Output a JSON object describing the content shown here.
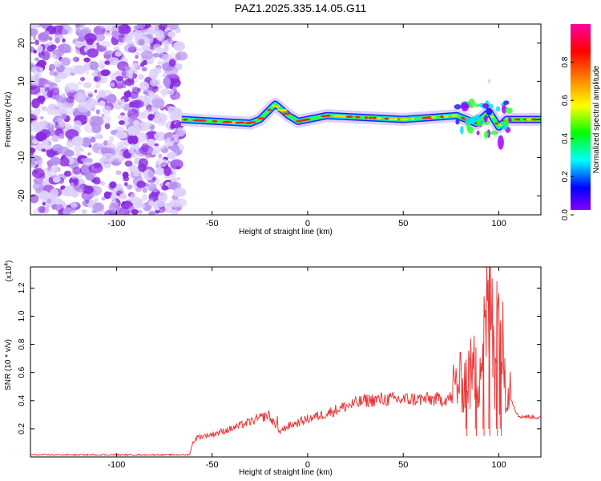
{
  "title": "PAZ1.2025.335.14.05.G11",
  "chart_data": [
    {
      "type": "heatmap",
      "name": "spectrogram",
      "xlabel": "Height of straight line (km)",
      "ylabel": "Frequency (Hz)",
      "xlim": [
        -145,
        122
      ],
      "ylim": [
        -25,
        25
      ],
      "xticks": [
        -100,
        -50,
        0,
        50,
        100
      ],
      "yticks": [
        -20,
        -10,
        0,
        10,
        20
      ],
      "colorbar": {
        "label": "Normalized spectral amplitude",
        "range": [
          0,
          1
        ],
        "ticks": [
          "0.0",
          "0.2",
          "0.4",
          "0.6",
          "0.8"
        ],
        "colors": [
          "#ffffff",
          "#a000ff",
          "#0000ff",
          "#00ffff",
          "#00ff00",
          "#ffff00",
          "#ff8000",
          "#ff0000",
          "#ff00a0"
        ]
      },
      "noise_region_x": [
        -145,
        -66
      ],
      "track_points": [
        {
          "x": -66,
          "f": 0
        },
        {
          "x": -30,
          "f": -1
        },
        {
          "x": -25,
          "f": 0
        },
        {
          "x": -17,
          "f": 4
        },
        {
          "x": -10,
          "f": 1
        },
        {
          "x": -5,
          "f": -0.5
        },
        {
          "x": 10,
          "f": 1
        },
        {
          "x": 50,
          "f": 0
        },
        {
          "x": 78,
          "f": 1
        },
        {
          "x": 88,
          "f": -1
        },
        {
          "x": 95,
          "f": 2
        },
        {
          "x": 100,
          "f": -2
        },
        {
          "x": 104,
          "f": 0
        },
        {
          "x": 122,
          "f": 0
        }
      ]
    },
    {
      "type": "line",
      "name": "snr",
      "xlabel": "Height of straight line (km)",
      "ylabel": "SNR (10 * v/v)",
      "scale_label": "(x10",
      "scale_exp": "4",
      "xlim": [
        -145,
        122
      ],
      "ylim": [
        0,
        1.35
      ],
      "xticks": [
        -100,
        -50,
        0,
        50,
        100
      ],
      "yticks": [
        "0.2",
        "0.4",
        "0.6",
        "0.8",
        "1.0",
        "1.2"
      ],
      "color": "#e8393a",
      "points": [
        {
          "x": -145,
          "y": 0.01
        },
        {
          "x": -62,
          "y": 0.01
        },
        {
          "x": -60,
          "y": 0.1
        },
        {
          "x": -58,
          "y": 0.14
        },
        {
          "x": -50,
          "y": 0.16
        },
        {
          "x": -40,
          "y": 0.2
        },
        {
          "x": -30,
          "y": 0.25
        },
        {
          "x": -20,
          "y": 0.3
        },
        {
          "x": -15,
          "y": 0.18
        },
        {
          "x": -10,
          "y": 0.22
        },
        {
          "x": 0,
          "y": 0.27
        },
        {
          "x": 10,
          "y": 0.31
        },
        {
          "x": 20,
          "y": 0.36
        },
        {
          "x": 30,
          "y": 0.4
        },
        {
          "x": 40,
          "y": 0.41
        },
        {
          "x": 50,
          "y": 0.41
        },
        {
          "x": 60,
          "y": 0.41
        },
        {
          "x": 70,
          "y": 0.41
        },
        {
          "x": 76,
          "y": 0.42
        },
        {
          "x": 80,
          "y": 0.45
        },
        {
          "x": 85,
          "y": 0.55
        },
        {
          "x": 90,
          "y": 0.7
        },
        {
          "x": 95,
          "y": 1.35
        },
        {
          "x": 100,
          "y": 1.25
        },
        {
          "x": 104,
          "y": 0.5
        },
        {
          "x": 110,
          "y": 0.29
        },
        {
          "x": 122,
          "y": 0.28
        }
      ]
    }
  ]
}
